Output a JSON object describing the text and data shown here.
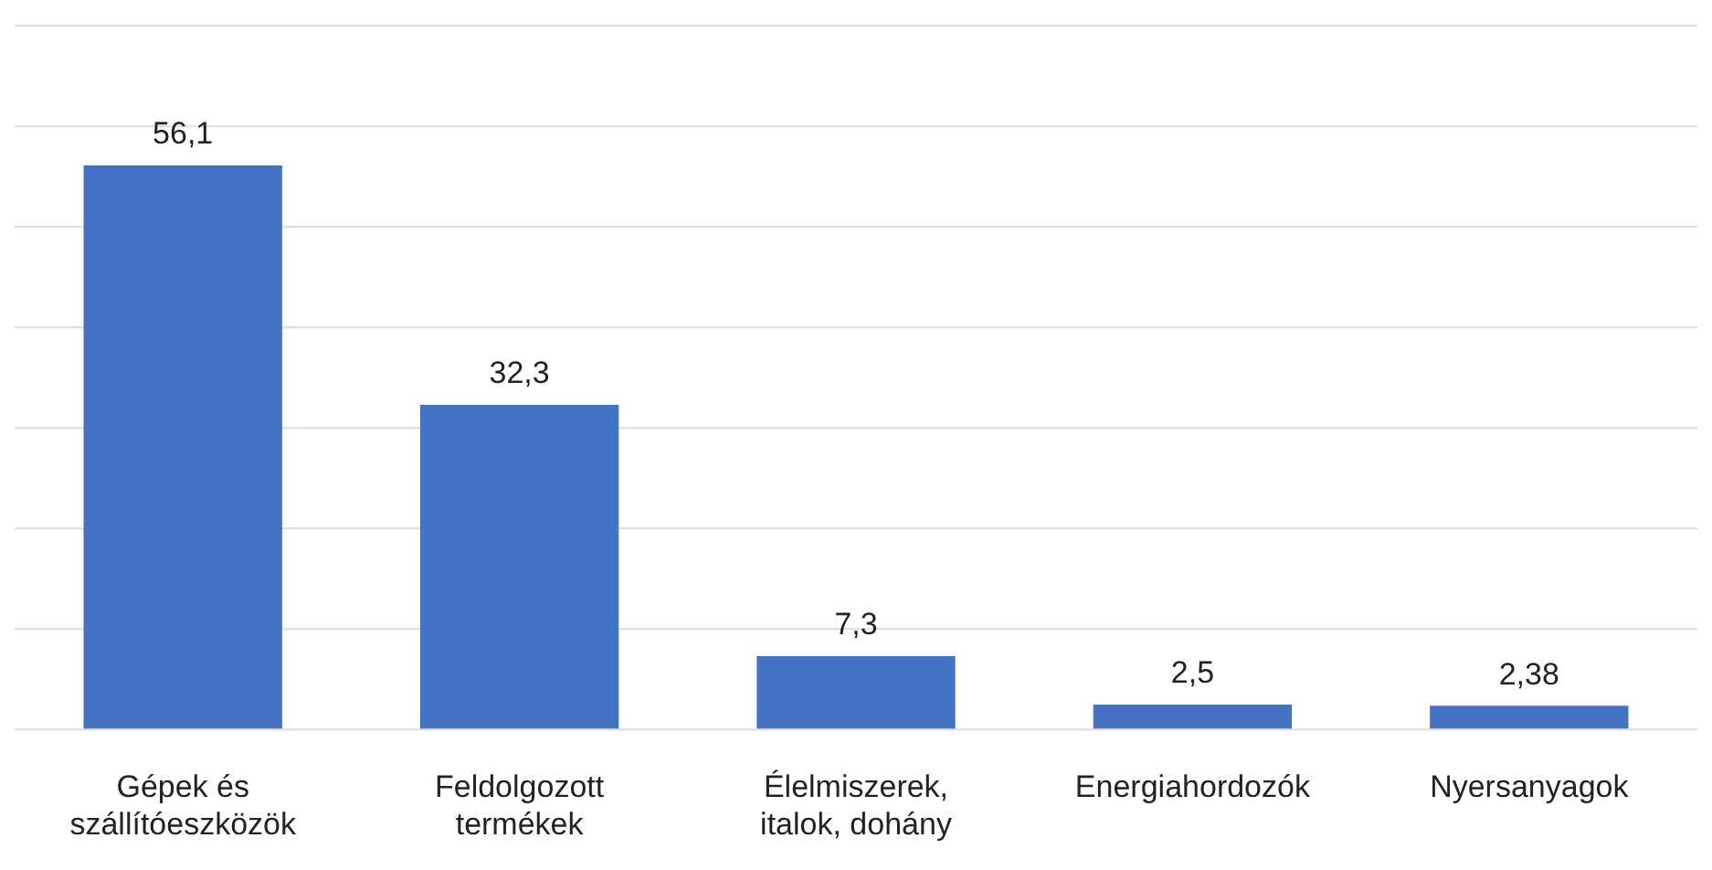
{
  "chart_data": {
    "type": "bar",
    "categories": [
      "Gépek és szállítóeszközök",
      "Feldolgozott termékek",
      "Élelmiszerek, italok, dohány",
      "Energiahordozók",
      "Nyersanyagok"
    ],
    "values": [
      56.1,
      32.3,
      7.3,
      2.5,
      2.38
    ],
    "value_labels": [
      "56,1",
      "32,3",
      "7,3",
      "2,5",
      "2,38"
    ],
    "color": "#4472c4",
    "ylim": [
      0,
      70
    ],
    "yticks": [
      {
        "value": 0,
        "label": null
      },
      {
        "value": 10,
        "label": null
      },
      {
        "value": 20,
        "label": null
      },
      {
        "value": 30,
        "label": null
      },
      {
        "value": 40,
        "label": null
      },
      {
        "value": 50,
        "label": null
      },
      {
        "value": 60,
        "label": null
      },
      {
        "value": 70,
        "label": null
      }
    ],
    "grid": "y",
    "tick_labels": "x",
    "legend": false
  }
}
